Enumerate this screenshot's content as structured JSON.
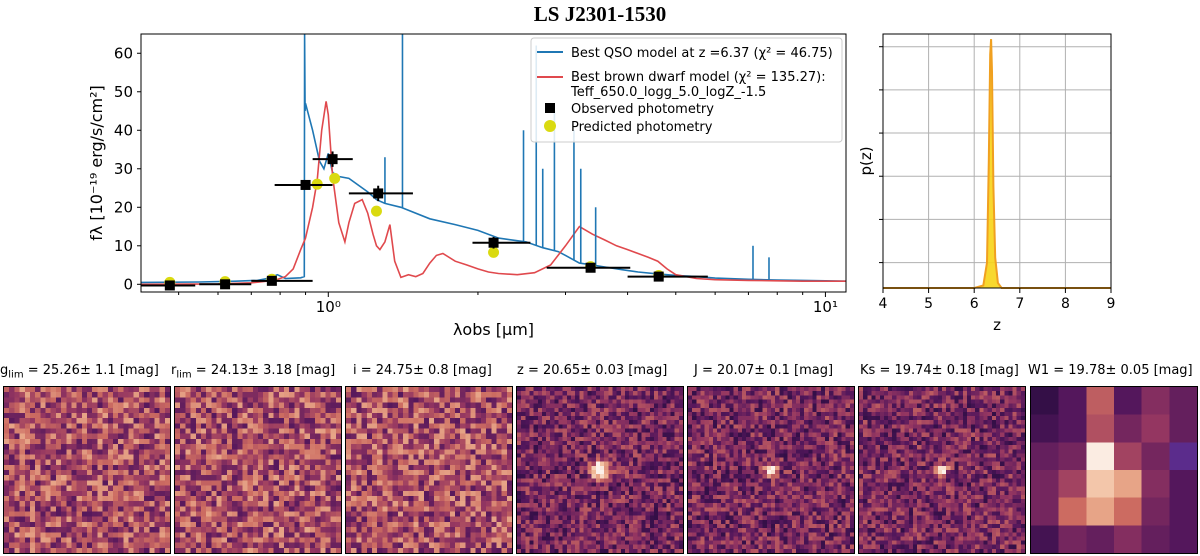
{
  "figure_title": "LS J2301-1530",
  "chart_data": [
    {
      "type": "line",
      "title": "",
      "xlabel": "λobs [μm]",
      "ylabel": "fλ [10⁻¹⁹ erg/s/cm²]",
      "x_scale": "log",
      "xlim": [
        0.42,
        11.0
      ],
      "ylim": [
        -2,
        65
      ],
      "xticks": [
        1,
        10
      ],
      "xtick_labels": [
        "10⁰",
        "10¹"
      ],
      "yticks": [
        0,
        10,
        20,
        30,
        40,
        50,
        60
      ],
      "legend": {
        "position": "top-right",
        "entries": [
          "Best QSO model at z =6.37 (χ² = 46.75)",
          "Best brown dwarf model (χ² = 135.27):",
          "Teff_650.0_logg_5.0_logZ_-1.5",
          "Observed photometry",
          "Predicted photometry"
        ]
      },
      "series": [
        {
          "name": "Best QSO model at z =6.37 (χ² = 46.75)",
          "color": "#1f77b4",
          "x": [
            0.42,
            0.55,
            0.65,
            0.72,
            0.76,
            0.79,
            0.82,
            0.86,
            0.88,
            0.895,
            0.896,
            0.898,
            0.9,
            0.93,
            0.96,
            0.98,
            1.0,
            1.02,
            1.05,
            1.1,
            1.2,
            1.25,
            1.3,
            1.4,
            1.6,
            1.8,
            2.0,
            2.2,
            2.5,
            2.7,
            2.9,
            3.0,
            3.2,
            3.4,
            3.6,
            3.9,
            4.2,
            4.6,
            5.0,
            5.5,
            6.0,
            7.0,
            8.0,
            9.0,
            10.0,
            11.0
          ],
          "values": [
            0.5,
            0.6,
            0.8,
            1.0,
            1.6,
            2.5,
            1.5,
            1.6,
            1.7,
            2.0,
            65,
            45,
            47,
            40,
            32,
            30,
            34,
            29,
            28,
            27.5,
            24,
            22,
            21,
            20,
            17,
            15.5,
            14,
            12,
            11,
            9.5,
            8.5,
            7.5,
            5.5,
            5.0,
            4.5,
            3.8,
            3.2,
            2.7,
            2.3,
            2.0,
            1.6,
            1.3,
            1.1,
            1.0,
            0.9,
            0.8
          ]
        },
        {
          "name": "Best brown dwarf model (χ² = 135.27):",
          "color": "#e0494d",
          "x": [
            0.42,
            0.6,
            0.7,
            0.78,
            0.82,
            0.85,
            0.88,
            0.9,
            0.93,
            0.95,
            0.97,
            0.99,
            1.0,
            1.02,
            1.05,
            1.08,
            1.1,
            1.13,
            1.17,
            1.2,
            1.23,
            1.25,
            1.27,
            1.3,
            1.33,
            1.36,
            1.4,
            1.45,
            1.5,
            1.55,
            1.6,
            1.65,
            1.7,
            1.8,
            1.9,
            2.0,
            2.1,
            2.2,
            2.4,
            2.6,
            2.8,
            3.0,
            3.2,
            3.4,
            3.6,
            3.8,
            4.0,
            4.2,
            4.4,
            4.6,
            4.8,
            5.0,
            5.5,
            6.0,
            7.0,
            8.0,
            9.0,
            10.0,
            11.0
          ],
          "values": [
            0,
            0.1,
            0.4,
            1.0,
            2.0,
            4.0,
            9.0,
            12.0,
            20.0,
            27.0,
            40.0,
            47.5,
            44.0,
            28.0,
            16.0,
            11.0,
            16.0,
            21.0,
            22.0,
            18.5,
            13.0,
            10.0,
            9.0,
            11.0,
            15.5,
            6.0,
            1.8,
            2.5,
            2.0,
            2.8,
            5.5,
            7.5,
            8.0,
            6.0,
            5.0,
            4.0,
            3.2,
            2.8,
            2.5,
            3.0,
            5.0,
            10.0,
            15.0,
            13.0,
            11.5,
            10.0,
            9.0,
            8.0,
            7.0,
            6.0,
            4.0,
            2.5,
            1.5,
            1.2,
            1.0,
            0.9,
            0.8,
            0.8,
            0.8
          ]
        },
        {
          "name": "Observed photometry",
          "type": "scatter",
          "color": "#000000",
          "points": [
            {
              "x": 0.48,
              "y": -0.3,
              "xerr": [
                0.42,
                0.54
              ],
              "yerr": 0.6
            },
            {
              "x": 0.62,
              "y": 0.0,
              "xerr": [
                0.55,
                0.7
              ],
              "yerr": 0.6
            },
            {
              "x": 0.77,
              "y": 0.9,
              "xerr": [
                0.7,
                0.93
              ],
              "yerr": 0.6
            },
            {
              "x": 0.9,
              "y": 25.8,
              "xerr": [
                0.78,
                1.02
              ],
              "yerr": 0.8
            },
            {
              "x": 1.02,
              "y": 32.5,
              "xerr": [
                0.93,
                1.12
              ],
              "yerr": 2.0
            },
            {
              "x": 1.26,
              "y": 23.6,
              "xerr": [
                1.1,
                1.48
              ],
              "yerr": 2.0
            },
            {
              "x": 2.15,
              "y": 10.8,
              "xerr": [
                1.95,
                2.55
              ],
              "yerr": 1.5
            },
            {
              "x": 3.37,
              "y": 4.3,
              "xerr": [
                2.75,
                4.05
              ],
              "yerr": 0.8
            },
            {
              "x": 4.62,
              "y": 2.0,
              "xerr": [
                4.0,
                5.8
              ],
              "yerr": 0.8
            }
          ]
        },
        {
          "name": "Predicted photometry",
          "type": "scatter",
          "color": "#dada10",
          "points": [
            {
              "x": 0.48,
              "y": 0.5
            },
            {
              "x": 0.62,
              "y": 0.7
            },
            {
              "x": 0.77,
              "y": 1.3
            },
            {
              "x": 0.95,
              "y": 26.0
            },
            {
              "x": 1.03,
              "y": 27.5
            },
            {
              "x": 1.25,
              "y": 19.0
            },
            {
              "x": 2.15,
              "y": 8.3
            },
            {
              "x": 3.37,
              "y": 4.6
            },
            {
              "x": 4.62,
              "y": 2.3
            }
          ]
        }
      ]
    },
    {
      "type": "area",
      "title": "",
      "xlabel": "z",
      "ylabel": "p(z)",
      "xlim": [
        4,
        9
      ],
      "ylim": [
        0,
        1.0
      ],
      "xticks": [
        4,
        5,
        6,
        7,
        8,
        9
      ],
      "grid": true,
      "series": [
        {
          "name": "p(z)",
          "color": "#f0a020",
          "x": [
            4.0,
            6.0,
            6.2,
            6.28,
            6.32,
            6.35,
            6.37,
            6.39,
            6.42,
            6.46,
            6.52,
            6.6,
            9.0
          ],
          "values": [
            0,
            0,
            0.01,
            0.1,
            0.5,
            0.92,
            0.98,
            0.85,
            0.4,
            0.12,
            0.02,
            0,
            0
          ]
        }
      ]
    }
  ],
  "cutouts": [
    {
      "label": "g lim = 25.26± 1.1 [mag]",
      "label_main": "g",
      "label_sub": "lim",
      "label_rest": " = 25.26± 1.1 [mag]",
      "grid": 32,
      "source": "none"
    },
    {
      "label": "r lim = 24.13± 3.18 [mag]",
      "label_main": "r",
      "label_sub": "lim",
      "label_rest": " = 24.13± 3.18 [mag]",
      "grid": 32,
      "source": "none"
    },
    {
      "label": "i = 24.75± 0.8 [mag]",
      "label_main": "i",
      "label_sub": "",
      "label_rest": " = 24.75± 0.8 [mag]",
      "grid": 32,
      "source": "none"
    },
    {
      "label": "z = 20.65± 0.03 [mag]",
      "label_main": "z",
      "label_sub": "",
      "label_rest": " = 20.65± 0.03 [mag]",
      "grid": 40,
      "source": "bright-extended"
    },
    {
      "label": "J = 20.07± 0.1 [mag]",
      "label_main": "J",
      "label_sub": "",
      "label_rest": " = 20.07± 0.1 [mag]",
      "grid": 40,
      "source": "bright-point"
    },
    {
      "label": "Ks = 19.74± 0.18 [mag]",
      "label_main": "Ks",
      "label_sub": "",
      "label_rest": " = 19.74± 0.18 [mag]",
      "grid": 40,
      "source": "bright-point"
    },
    {
      "label": "W1 = 19.78± 0.05 [mag]",
      "label_main": "W1",
      "label_sub": "",
      "label_rest": " = 19.78± 0.05 [mag]",
      "grid": 6,
      "source": "coarse"
    }
  ]
}
